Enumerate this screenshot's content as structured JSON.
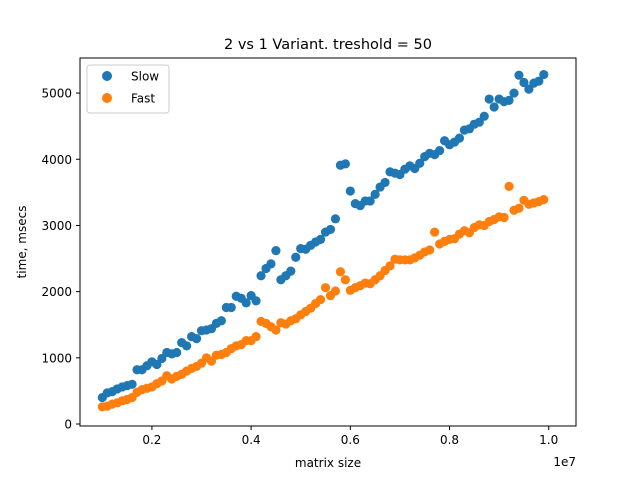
{
  "chart_data": {
    "type": "scatter",
    "title": "2 vs 1 Variant. treshold = 50",
    "xlabel": "matrix size",
    "ylabel": "time, msecs",
    "x_offset_label": "1e7",
    "xlim": [
      0.055,
      1.055
    ],
    "ylim": [
      -30,
      5530
    ],
    "xticks": [
      {
        "value": 0.2,
        "label": "0.2"
      },
      {
        "value": 0.4,
        "label": "0.4"
      },
      {
        "value": 0.6,
        "label": "0.6"
      },
      {
        "value": 0.8,
        "label": "0.8"
      },
      {
        "value": 1.0,
        "label": "1.0"
      }
    ],
    "yticks": [
      {
        "value": 0,
        "label": "0"
      },
      {
        "value": 1000,
        "label": "1000"
      },
      {
        "value": 2000,
        "label": "2000"
      },
      {
        "value": 3000,
        "label": "3000"
      },
      {
        "value": 4000,
        "label": "4000"
      },
      {
        "value": 5000,
        "label": "5000"
      }
    ],
    "grid": false,
    "legend_position": "top-left",
    "series": [
      {
        "name": "Slow",
        "color": "#1f77b4",
        "points": [
          [
            0.1,
            400
          ],
          [
            0.11,
            470
          ],
          [
            0.12,
            490
          ],
          [
            0.13,
            530
          ],
          [
            0.14,
            560
          ],
          [
            0.15,
            580
          ],
          [
            0.16,
            600
          ],
          [
            0.17,
            820
          ],
          [
            0.18,
            820
          ],
          [
            0.19,
            880
          ],
          [
            0.2,
            940
          ],
          [
            0.21,
            900
          ],
          [
            0.22,
            990
          ],
          [
            0.23,
            1080
          ],
          [
            0.24,
            1060
          ],
          [
            0.25,
            1080
          ],
          [
            0.26,
            1230
          ],
          [
            0.27,
            1180
          ],
          [
            0.28,
            1320
          ],
          [
            0.29,
            1290
          ],
          [
            0.3,
            1410
          ],
          [
            0.31,
            1420
          ],
          [
            0.32,
            1440
          ],
          [
            0.33,
            1520
          ],
          [
            0.34,
            1560
          ],
          [
            0.35,
            1760
          ],
          [
            0.36,
            1760
          ],
          [
            0.37,
            1930
          ],
          [
            0.38,
            1900
          ],
          [
            0.39,
            1830
          ],
          [
            0.4,
            1940
          ],
          [
            0.41,
            1860
          ],
          [
            0.42,
            2240
          ],
          [
            0.43,
            2350
          ],
          [
            0.44,
            2420
          ],
          [
            0.45,
            2620
          ],
          [
            0.46,
            2180
          ],
          [
            0.47,
            2240
          ],
          [
            0.48,
            2310
          ],
          [
            0.49,
            2520
          ],
          [
            0.5,
            2650
          ],
          [
            0.51,
            2640
          ],
          [
            0.52,
            2700
          ],
          [
            0.53,
            2750
          ],
          [
            0.54,
            2790
          ],
          [
            0.55,
            2900
          ],
          [
            0.56,
            2940
          ],
          [
            0.57,
            3100
          ],
          [
            0.58,
            3910
          ],
          [
            0.59,
            3930
          ],
          [
            0.6,
            3520
          ],
          [
            0.61,
            3330
          ],
          [
            0.62,
            3300
          ],
          [
            0.63,
            3370
          ],
          [
            0.64,
            3370
          ],
          [
            0.65,
            3470
          ],
          [
            0.66,
            3580
          ],
          [
            0.67,
            3650
          ],
          [
            0.68,
            3810
          ],
          [
            0.69,
            3790
          ],
          [
            0.7,
            3770
          ],
          [
            0.71,
            3850
          ],
          [
            0.72,
            3900
          ],
          [
            0.73,
            3860
          ],
          [
            0.74,
            3940
          ],
          [
            0.75,
            4040
          ],
          [
            0.76,
            4090
          ],
          [
            0.77,
            4070
          ],
          [
            0.78,
            4130
          ],
          [
            0.79,
            4280
          ],
          [
            0.8,
            4220
          ],
          [
            0.81,
            4260
          ],
          [
            0.82,
            4320
          ],
          [
            0.83,
            4440
          ],
          [
            0.84,
            4460
          ],
          [
            0.85,
            4530
          ],
          [
            0.86,
            4560
          ],
          [
            0.87,
            4650
          ],
          [
            0.88,
            4910
          ],
          [
            0.89,
            4790
          ],
          [
            0.9,
            4910
          ],
          [
            0.91,
            4870
          ],
          [
            0.92,
            4890
          ],
          [
            0.93,
            5000
          ],
          [
            0.94,
            5270
          ],
          [
            0.95,
            5160
          ],
          [
            0.96,
            5060
          ],
          [
            0.97,
            5150
          ],
          [
            0.98,
            5180
          ],
          [
            0.99,
            5280
          ]
        ]
      },
      {
        "name": "Fast",
        "color": "#ff7f0e",
        "points": [
          [
            0.1,
            260
          ],
          [
            0.11,
            270
          ],
          [
            0.12,
            300
          ],
          [
            0.13,
            320
          ],
          [
            0.14,
            350
          ],
          [
            0.15,
            370
          ],
          [
            0.16,
            400
          ],
          [
            0.17,
            480
          ],
          [
            0.18,
            520
          ],
          [
            0.19,
            540
          ],
          [
            0.2,
            560
          ],
          [
            0.21,
            610
          ],
          [
            0.22,
            650
          ],
          [
            0.23,
            730
          ],
          [
            0.24,
            680
          ],
          [
            0.25,
            720
          ],
          [
            0.26,
            750
          ],
          [
            0.27,
            800
          ],
          [
            0.28,
            840
          ],
          [
            0.29,
            870
          ],
          [
            0.3,
            920
          ],
          [
            0.31,
            1000
          ],
          [
            0.32,
            950
          ],
          [
            0.33,
            1040
          ],
          [
            0.34,
            1050
          ],
          [
            0.35,
            1080
          ],
          [
            0.36,
            1140
          ],
          [
            0.37,
            1180
          ],
          [
            0.38,
            1200
          ],
          [
            0.39,
            1260
          ],
          [
            0.4,
            1260
          ],
          [
            0.41,
            1320
          ],
          [
            0.42,
            1550
          ],
          [
            0.43,
            1520
          ],
          [
            0.44,
            1470
          ],
          [
            0.45,
            1420
          ],
          [
            0.46,
            1530
          ],
          [
            0.47,
            1510
          ],
          [
            0.48,
            1560
          ],
          [
            0.49,
            1590
          ],
          [
            0.5,
            1650
          ],
          [
            0.51,
            1700
          ],
          [
            0.52,
            1750
          ],
          [
            0.53,
            1820
          ],
          [
            0.54,
            1880
          ],
          [
            0.55,
            2060
          ],
          [
            0.56,
            1940
          ],
          [
            0.57,
            2010
          ],
          [
            0.58,
            2300
          ],
          [
            0.59,
            2180
          ],
          [
            0.6,
            2020
          ],
          [
            0.61,
            2060
          ],
          [
            0.62,
            2090
          ],
          [
            0.63,
            2130
          ],
          [
            0.64,
            2120
          ],
          [
            0.65,
            2180
          ],
          [
            0.66,
            2240
          ],
          [
            0.67,
            2320
          ],
          [
            0.68,
            2390
          ],
          [
            0.69,
            2490
          ],
          [
            0.7,
            2480
          ],
          [
            0.71,
            2480
          ],
          [
            0.72,
            2480
          ],
          [
            0.73,
            2510
          ],
          [
            0.74,
            2550
          ],
          [
            0.75,
            2600
          ],
          [
            0.76,
            2630
          ],
          [
            0.77,
            2900
          ],
          [
            0.78,
            2720
          ],
          [
            0.79,
            2760
          ],
          [
            0.8,
            2790
          ],
          [
            0.81,
            2800
          ],
          [
            0.82,
            2870
          ],
          [
            0.83,
            2920
          ],
          [
            0.84,
            2890
          ],
          [
            0.85,
            2970
          ],
          [
            0.86,
            3010
          ],
          [
            0.87,
            3000
          ],
          [
            0.88,
            3060
          ],
          [
            0.89,
            3090
          ],
          [
            0.9,
            3130
          ],
          [
            0.91,
            3120
          ],
          [
            0.92,
            3590
          ],
          [
            0.93,
            3230
          ],
          [
            0.94,
            3260
          ],
          [
            0.95,
            3380
          ],
          [
            0.96,
            3320
          ],
          [
            0.97,
            3340
          ],
          [
            0.98,
            3360
          ],
          [
            0.99,
            3390
          ]
        ]
      }
    ]
  }
}
